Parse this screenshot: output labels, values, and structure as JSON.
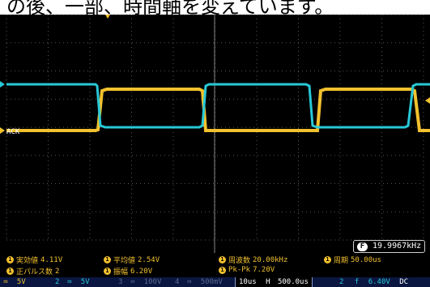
{
  "caption": {
    "text": "の後、一部、時間軸を変えています。"
  },
  "screen": {
    "channel_label": "ACK",
    "counter": {
      "badge": "F",
      "value": "19.9967kHz"
    }
  },
  "measurements": [
    {
      "label": "実効値",
      "value": "4.11V"
    },
    {
      "label": "平均値",
      "value": "2.54V"
    },
    {
      "label": "周波数",
      "value": "20.00kHz"
    },
    {
      "label": "周期",
      "value": "50.00us"
    },
    {
      "label": "正パルス数",
      "value": "2"
    },
    {
      "label": "振幅",
      "value": "6.20V"
    },
    {
      "label": "Pk-Pk",
      "value": "7.20V"
    }
  ],
  "status_bar": {
    "ch1": {
      "num": "1",
      "coupling": "≕",
      "scale": "5V"
    },
    "ch2": {
      "num": "2",
      "coupling": "≕",
      "scale": "5V"
    },
    "ch3": {
      "num": "3",
      "coupling": "≕",
      "scale": "100V"
    },
    "ch4": {
      "num": "4",
      "coupling": "≕",
      "scale": "500mV"
    },
    "timebase": {
      "scale": "10us",
      "icon": "H",
      "position": "500.0us"
    },
    "trigger": {
      "source": "2",
      "slope": "f",
      "level": "6.40V",
      "coupling": "DC"
    }
  },
  "colors": {
    "ch1": "#f2c12e",
    "ch2": "#28c8d8",
    "grid": "#4a4a4a",
    "status_bg": "#0a1640"
  },
  "icons": [
    "channel-1-marker-icon",
    "channel-2-marker-icon",
    "freq-counter-icon",
    "horizontal-position-icon",
    "trigger-slope-icon"
  ]
}
